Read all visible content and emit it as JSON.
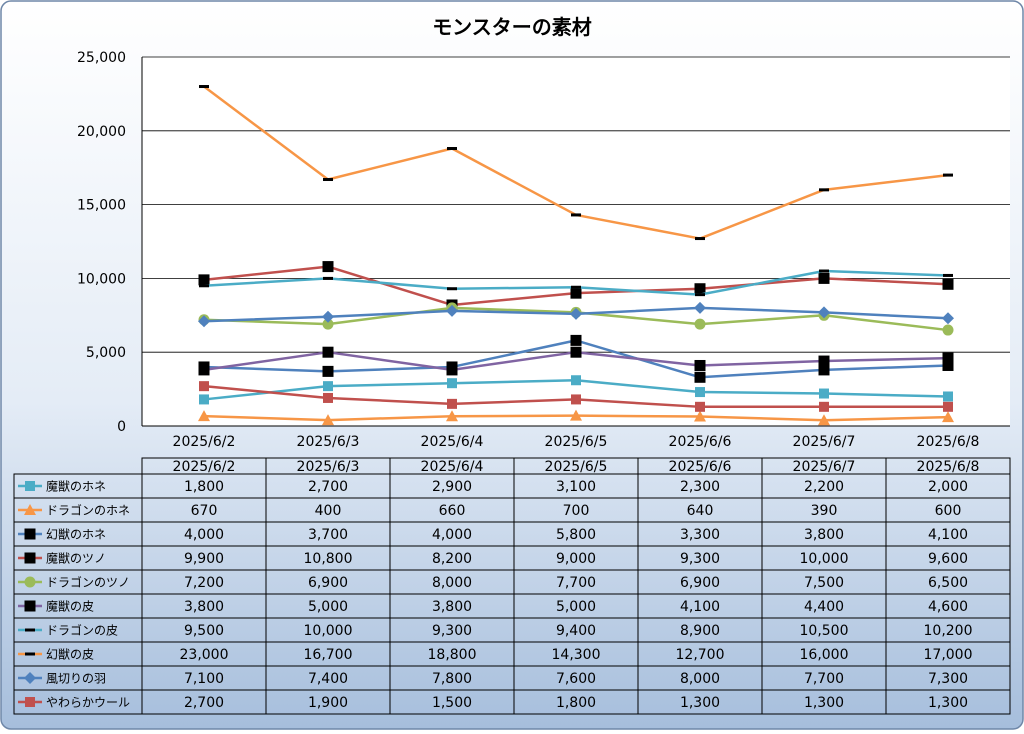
{
  "chart_data": {
    "type": "line",
    "title": "モンスターの素材",
    "categories": [
      "2025/6/2",
      "2025/6/3",
      "2025/6/4",
      "2025/6/5",
      "2025/6/6",
      "2025/6/7",
      "2025/6/8"
    ],
    "ylim": [
      0,
      25000
    ],
    "yticks": [
      0,
      5000,
      10000,
      15000,
      20000,
      25000
    ],
    "ytick_labels": [
      "0",
      "5,000",
      "10,000",
      "15,000",
      "20,000",
      "25,000"
    ],
    "grid": true,
    "legend": "data-table",
    "series": [
      {
        "name": "魔獣のホネ",
        "color": "#4bacc6",
        "marker": "square",
        "values": [
          1800,
          2700,
          2900,
          3100,
          2300,
          2200,
          2000
        ],
        "labels": [
          "1,800",
          "2,700",
          "2,900",
          "3,100",
          "2,300",
          "2,200",
          "2,000"
        ]
      },
      {
        "name": "ドラゴンのホネ",
        "color": "#f79646",
        "marker": "triangle",
        "values": [
          670,
          400,
          660,
          700,
          640,
          390,
          600
        ],
        "labels": [
          "670",
          "400",
          "660",
          "700",
          "640",
          "390",
          "600"
        ]
      },
      {
        "name": "幻獣のホネ",
        "color": "#4f81bd",
        "marker": "square-black",
        "values": [
          4000,
          3700,
          4000,
          5800,
          3300,
          3800,
          4100
        ],
        "labels": [
          "4,000",
          "3,700",
          "4,000",
          "5,800",
          "3,300",
          "3,800",
          "4,100"
        ]
      },
      {
        "name": "魔獣のツノ",
        "color": "#c0504d",
        "marker": "square-black",
        "values": [
          9900,
          10800,
          8200,
          9000,
          9300,
          10000,
          9600
        ],
        "labels": [
          "9,900",
          "10,800",
          "8,200",
          "9,000",
          "9,300",
          "10,000",
          "9,600"
        ]
      },
      {
        "name": "ドラゴンのツノ",
        "color": "#9bbb59",
        "marker": "circle",
        "values": [
          7200,
          6900,
          8000,
          7700,
          6900,
          7500,
          6500
        ],
        "labels": [
          "7,200",
          "6,900",
          "8,000",
          "7,700",
          "6,900",
          "7,500",
          "6,500"
        ]
      },
      {
        "name": "魔獣の皮",
        "color": "#8064a2",
        "marker": "square-black",
        "values": [
          3800,
          5000,
          3800,
          5000,
          4100,
          4400,
          4600
        ],
        "labels": [
          "3,800",
          "5,000",
          "3,800",
          "5,000",
          "4,100",
          "4,400",
          "4,600"
        ]
      },
      {
        "name": "ドラゴンの皮",
        "color": "#4bacc6",
        "marker": "dash",
        "values": [
          9500,
          10000,
          9300,
          9400,
          8900,
          10500,
          10200
        ],
        "labels": [
          "9,500",
          "10,000",
          "9,300",
          "9,400",
          "8,900",
          "10,500",
          "10,200"
        ]
      },
      {
        "name": "幻獣の皮",
        "color": "#f79646",
        "marker": "dash",
        "values": [
          23000,
          16700,
          18800,
          14300,
          12700,
          16000,
          17000
        ],
        "labels": [
          "23,000",
          "16,700",
          "18,800",
          "14,300",
          "12,700",
          "16,000",
          "17,000"
        ]
      },
      {
        "name": "風切りの羽",
        "color": "#4f81bd",
        "marker": "diamond",
        "values": [
          7100,
          7400,
          7800,
          7600,
          8000,
          7700,
          7300
        ],
        "labels": [
          "7,100",
          "7,400",
          "7,800",
          "7,600",
          "8,000",
          "7,700",
          "7,300"
        ]
      },
      {
        "name": "やわらかウール",
        "color": "#c0504d",
        "marker": "square",
        "values": [
          2700,
          1900,
          1500,
          1800,
          1300,
          1300,
          1300
        ],
        "labels": [
          "2,700",
          "1,900",
          "1,500",
          "1,800",
          "1,300",
          "1,300",
          "1,300"
        ]
      }
    ]
  }
}
